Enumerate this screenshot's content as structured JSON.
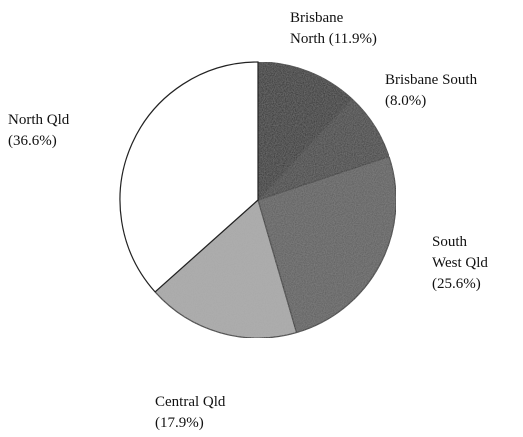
{
  "chart_data": {
    "type": "pie",
    "categories": [
      "Brisbane North",
      "Brisbane South",
      "South West Qld",
      "Central Qld",
      "North Qld"
    ],
    "values": [
      11.9,
      8.0,
      25.6,
      17.9,
      36.6
    ],
    "value_labels": [
      "(11.9%)",
      "(8.0%)",
      "(25.6%)",
      "(17.9%)",
      "(36.6%)"
    ],
    "colors": [
      "#1e1e1e",
      "#353535",
      "#565656",
      "#a8a8a8",
      "#ffffff"
    ]
  }
}
